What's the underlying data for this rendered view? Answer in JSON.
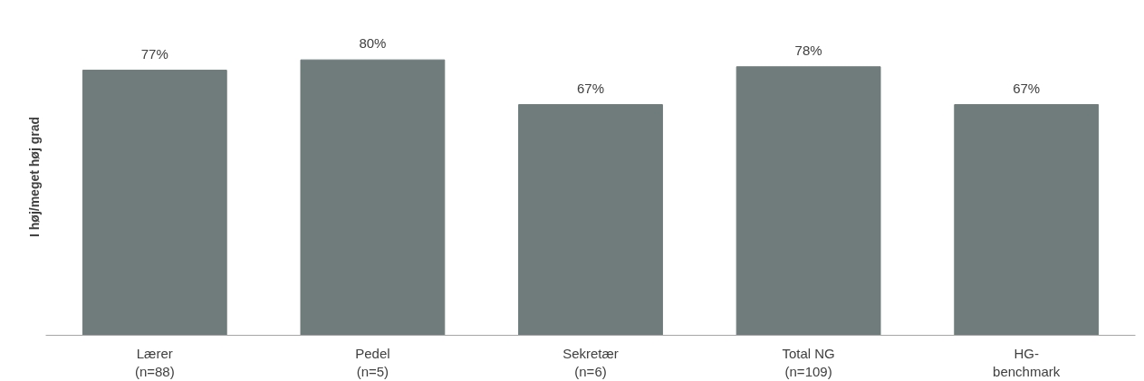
{
  "chart_data": {
    "type": "bar",
    "ylabel": "I høj/meget høj grad",
    "categories": [
      "Lærer\n(n=88)",
      "Pedel\n(n=5)",
      "Sekretær\n(n=6)",
      "Total NG\n(n=109)",
      "HG-\nbenchmark"
    ],
    "values": [
      77,
      80,
      67,
      78,
      67
    ],
    "value_labels": [
      "77%",
      "80%",
      "67%",
      "78%",
      "67%"
    ],
    "color": "#6f7c7b",
    "tick_labels": "x"
  }
}
